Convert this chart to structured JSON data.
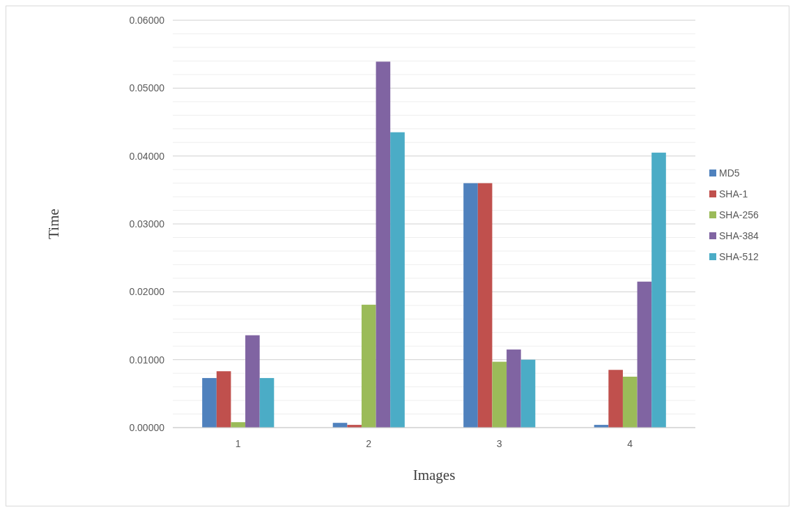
{
  "chart_data": {
    "type": "bar",
    "xlabel": "Images",
    "ylabel": "Time",
    "categories": [
      "1",
      "2",
      "3",
      "4"
    ],
    "series": [
      {
        "name": "MD5",
        "color": "#4f81bd",
        "values": [
          0.0073,
          0.0007,
          0.036,
          0.0004
        ]
      },
      {
        "name": "SHA-1",
        "color": "#c0504d",
        "values": [
          0.0083,
          0.0004,
          0.036,
          0.0085
        ]
      },
      {
        "name": "SHA-256",
        "color": "#9bbb59",
        "values": [
          0.0008,
          0.0181,
          0.0097,
          0.0075
        ]
      },
      {
        "name": "SHA-384",
        "color": "#8064a2",
        "values": [
          0.0136,
          0.0539,
          0.0115,
          0.0215
        ]
      },
      {
        "name": "SHA-512",
        "color": "#4bacc6",
        "values": [
          0.0073,
          0.0435,
          0.01,
          0.0405
        ]
      }
    ],
    "ylim": [
      0,
      0.06
    ],
    "yticks": [
      {
        "value": 0,
        "label": "0.00000"
      },
      {
        "value": 0.002,
        "label": null
      },
      {
        "value": 0.004,
        "label": null
      },
      {
        "value": 0.006,
        "label": null
      },
      {
        "value": 0.008,
        "label": null
      },
      {
        "value": 0.01,
        "label": "0.01000"
      },
      {
        "value": 0.012,
        "label": null
      },
      {
        "value": 0.014,
        "label": null
      },
      {
        "value": 0.016,
        "label": null
      },
      {
        "value": 0.018,
        "label": null
      },
      {
        "value": 0.02,
        "label": "0.02000"
      },
      {
        "value": 0.022,
        "label": null
      },
      {
        "value": 0.024,
        "label": null
      },
      {
        "value": 0.026,
        "label": null
      },
      {
        "value": 0.028,
        "label": null
      },
      {
        "value": 0.03,
        "label": "0.03000"
      },
      {
        "value": 0.032,
        "label": null
      },
      {
        "value": 0.034,
        "label": null
      },
      {
        "value": 0.036,
        "label": null
      },
      {
        "value": 0.038,
        "label": null
      },
      {
        "value": 0.04,
        "label": "0.04000"
      },
      {
        "value": 0.042,
        "label": null
      },
      {
        "value": 0.044,
        "label": null
      },
      {
        "value": 0.046,
        "label": null
      },
      {
        "value": 0.048,
        "label": null
      },
      {
        "value": 0.05,
        "label": "0.05000"
      },
      {
        "value": 0.052,
        "label": null
      },
      {
        "value": 0.054,
        "label": null
      },
      {
        "value": 0.056,
        "label": null
      },
      {
        "value": 0.058,
        "label": null
      },
      {
        "value": 0.06,
        "label": "0.06000"
      }
    ],
    "grid": "y",
    "legend": "right"
  }
}
